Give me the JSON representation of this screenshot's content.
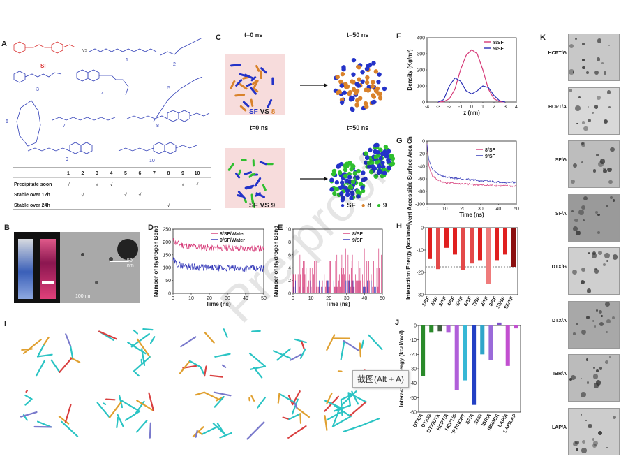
{
  "panels": {
    "A": "A",
    "B": "B",
    "C": "C",
    "D": "D",
    "E": "E",
    "F": "F",
    "G": "G",
    "H": "H",
    "I": "I",
    "J": "J",
    "K": "K"
  },
  "panel_a": {
    "labels": [
      "SF",
      "vs",
      "1",
      "2",
      "3",
      "4",
      "5",
      "6",
      "7",
      "8",
      "9",
      "10"
    ],
    "table_cols": [
      "1",
      "2",
      "3",
      "4",
      "5",
      "6",
      "7",
      "8",
      "9",
      "10"
    ],
    "rows": [
      {
        "label": "Precipitate soon",
        "marks": [
          "√",
          "",
          "√",
          "√",
          "",
          "",
          "",
          "",
          "√",
          "√"
        ]
      },
      {
        "label": "Stable over 12h",
        "marks": [
          "",
          "√",
          "",
          "",
          "√",
          "√",
          "",
          "",
          "",
          ""
        ]
      },
      {
        "label": "Stable over 24h",
        "marks": [
          "",
          "",
          "",
          "",
          "",
          "",
          "",
          "√",
          "",
          ""
        ]
      }
    ]
  },
  "panel_b": {
    "scale1": "50 nm",
    "scale2": "100 nm"
  },
  "panel_c": {
    "t0": "t=0 ns",
    "t50": "t=50 ns",
    "title1_a": "SF",
    "title1_b": "VS",
    "title1_c": "8",
    "title2": "SF VS 9",
    "legend": [
      "SF",
      "8",
      "9"
    ],
    "legend_colors": [
      "#2433c8",
      "#d9822b",
      "#2fbf2f"
    ]
  },
  "chart_data": [
    {
      "panel": "D",
      "type": "line",
      "ylabel": "Number of Hydrogen Bond",
      "xlabel": "Time (ns)",
      "xlim": [
        0,
        50
      ],
      "ylim": [
        0,
        250
      ],
      "xticks": [
        "0",
        "10",
        "20",
        "30",
        "40",
        "50"
      ],
      "yticks": [
        "0",
        "50",
        "100",
        "150",
        "200",
        "250"
      ],
      "series": [
        {
          "name": "8/SF/Water",
          "color": "#d63a78",
          "x": [
            0,
            2,
            5,
            10,
            20,
            30,
            40,
            50
          ],
          "values": [
            205,
            195,
            188,
            182,
            178,
            176,
            175,
            174
          ]
        },
        {
          "name": "9/SF/Water",
          "color": "#2a2fb5",
          "x": [
            0,
            2,
            5,
            10,
            20,
            30,
            40,
            50
          ],
          "values": [
            130,
            115,
            108,
            104,
            100,
            98,
            97,
            96
          ]
        }
      ]
    },
    {
      "panel": "E",
      "type": "line",
      "ylabel": "Number of Hydrogen Bond",
      "xlabel": "Time (ns)",
      "xlim": [
        0,
        50
      ],
      "ylim": [
        0,
        10
      ],
      "xticks": [
        "0",
        "10",
        "20",
        "30",
        "40",
        "50"
      ],
      "yticks": [
        "0",
        "2",
        "4",
        "6",
        "8",
        "10"
      ],
      "series": [
        {
          "name": "8/SF",
          "color": "#d63a78",
          "mean": 3.5
        },
        {
          "name": "9/SF",
          "color": "#2a2fb5",
          "mean": 0.4
        }
      ]
    },
    {
      "panel": "F",
      "type": "line",
      "ylabel": "Density (Kg/m³)",
      "xlabel": "z (nm)",
      "xlim": [
        -4,
        4
      ],
      "ylim": [
        0,
        400
      ],
      "xticks": [
        "-4",
        "-3",
        "-2",
        "-1",
        "0",
        "1",
        "2",
        "3",
        "4"
      ],
      "yticks": [
        "0",
        "100",
        "200",
        "300",
        "400"
      ],
      "series": [
        {
          "name": "8/SF",
          "color": "#d63a78",
          "x": [
            -3,
            -2.5,
            -2,
            -1.5,
            -1,
            -0.5,
            0,
            0.5,
            1,
            1.5,
            2,
            2.5,
            3
          ],
          "values": [
            0,
            2,
            20,
            80,
            200,
            290,
            325,
            300,
            200,
            80,
            20,
            2,
            0
          ]
        },
        {
          "name": "9/SF",
          "color": "#2a2fb5",
          "x": [
            -3,
            -2.5,
            -2,
            -1.5,
            -1,
            -0.5,
            0,
            0.5,
            1,
            1.5,
            2,
            2.5,
            3
          ],
          "values": [
            0,
            15,
            100,
            150,
            130,
            70,
            50,
            70,
            100,
            90,
            40,
            8,
            0
          ]
        }
      ]
    },
    {
      "panel": "G",
      "type": "line",
      "ylabel": "Solvent Accessible Surface Area Change (%)",
      "xlabel": "Time (ns)",
      "xlim": [
        0,
        50
      ],
      "ylim": [
        -100,
        0
      ],
      "xticks": [
        "0",
        "10",
        "20",
        "30",
        "40",
        "50"
      ],
      "yticks": [
        "0",
        "-20",
        "-40",
        "-60",
        "-80",
        "-100"
      ],
      "series": [
        {
          "name": "8/SF",
          "color": "#d63a78",
          "x": [
            0,
            1,
            3,
            6,
            10,
            20,
            30,
            40,
            50
          ],
          "values": [
            -5,
            -40,
            -55,
            -62,
            -66,
            -68,
            -70,
            -71,
            -72
          ]
        },
        {
          "name": "9/SF",
          "color": "#2a2fb5",
          "x": [
            0,
            1,
            3,
            6,
            10,
            20,
            30,
            40,
            50
          ],
          "values": [
            -5,
            -30,
            -45,
            -52,
            -57,
            -60,
            -63,
            -65,
            -66
          ]
        }
      ]
    },
    {
      "panel": "H",
      "type": "bar",
      "ylabel": "Interaction Energy (kcal/mol)",
      "ylim": [
        -30,
        0
      ],
      "yticks": [
        "0",
        "-10",
        "-20",
        "-30"
      ],
      "categories": [
        "1/SF",
        "2/SF",
        "3/SF",
        "4/SF",
        "5/SF",
        "6/SF",
        "7/SF",
        "8/SF",
        "9/SF",
        "10/SF",
        "SF/SF"
      ],
      "values": [
        -14,
        -18.5,
        -9,
        -12,
        -19,
        -16,
        -14.5,
        -25,
        -14.5,
        -12,
        -17.5
      ],
      "colors": [
        "#e02020",
        "#e34a4a",
        "#e02020",
        "#e02020",
        "#e34a4a",
        "#e34a4a",
        "#e02020",
        "#ef7b7b",
        "#e02020",
        "#e02020",
        "#8b0f0f"
      ],
      "reference": -17.5
    },
    {
      "panel": "J",
      "type": "bar",
      "ylabel": "Interaction Energy (kcal/mol)",
      "ylim": [
        -60,
        0
      ],
      "yticks": [
        "0",
        "-10",
        "-20",
        "-30",
        "-40",
        "-50",
        "-60"
      ],
      "categories": [
        "DTX/A",
        "DTX/G",
        "DTX/DTX",
        "HCPT/A",
        "HCPT/G",
        "HCPT/HCPT",
        "SF/A",
        "SF/G",
        "IBR/A",
        "IBR/IBR",
        "LAP/A",
        "LAP/LAP"
      ],
      "values": [
        -35,
        -5,
        -4,
        -5,
        -45,
        -38,
        -55,
        -20,
        -24,
        2,
        -28,
        -2
      ],
      "colors": [
        "#2a8a2a",
        "#2a8a2a",
        "#3f5f3f",
        "#b05fd9",
        "#b05fd9",
        "#36b8d6",
        "#2340c4",
        "#2fa5c9",
        "#9a6ad9",
        "#7b4fc9",
        "#c24fd0",
        "#c24fd0"
      ]
    }
  ],
  "panel_k": {
    "labels": [
      "HCPT/G",
      "HCPT/A",
      "SF/G",
      "SF/A",
      "DTX/G",
      "DTX/A",
      "IBR/A",
      "LAP/A"
    ]
  },
  "tooltip": "截图(Alt + A)",
  "watermark": "Pre-proof"
}
